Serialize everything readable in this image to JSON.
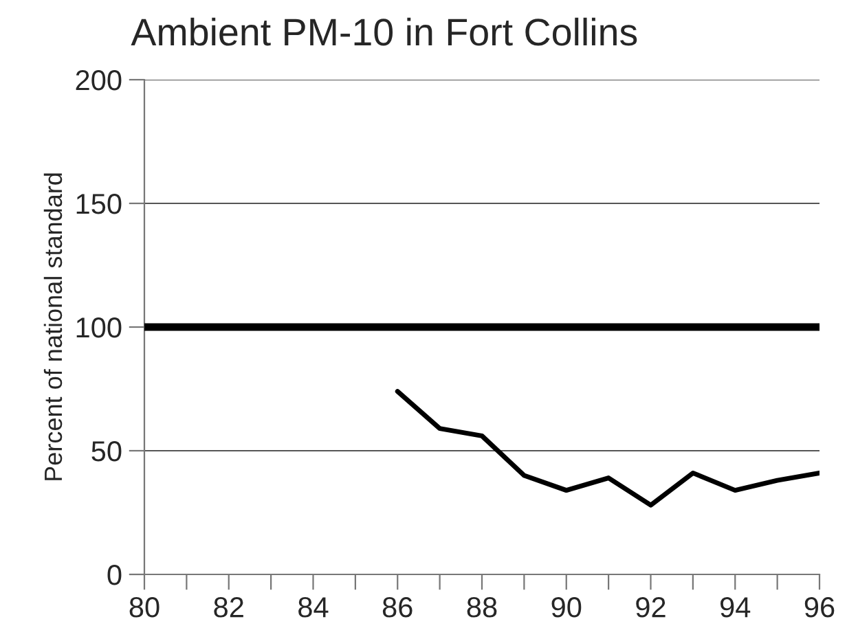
{
  "chart_data": {
    "type": "line",
    "title": "Ambient PM-10 in Fort Collins",
    "ylabel": "Percent of national standard",
    "x": [
      86,
      87,
      88,
      89,
      90,
      91,
      92,
      93,
      94,
      95,
      96
    ],
    "series": [
      {
        "color": "#000000",
        "values": [
          74,
          59,
          56,
          40,
          34,
          39,
          28,
          41,
          34,
          38,
          41
        ]
      }
    ],
    "xlim": [
      80,
      96
    ],
    "ylim": [
      0,
      200
    ],
    "xticks": [
      80,
      {
        "value": 81,
        "label": null
      },
      82,
      {
        "value": 83,
        "label": null
      },
      84,
      {
        "value": 85,
        "label": null
      },
      86,
      {
        "value": 87,
        "label": null
      },
      88,
      {
        "value": 89,
        "label": null
      },
      90,
      {
        "value": 91,
        "label": null
      },
      92,
      {
        "value": 93,
        "label": null
      },
      94,
      {
        "value": 95,
        "label": null
      },
      96
    ],
    "yticks": [
      0,
      50,
      100,
      150,
      200
    ],
    "ref_lines": [
      {
        "axis": "y",
        "value": 100,
        "color": "#000000"
      }
    ],
    "grid": "y",
    "legend": false,
    "marker": "none",
    "line_style": "solid"
  }
}
